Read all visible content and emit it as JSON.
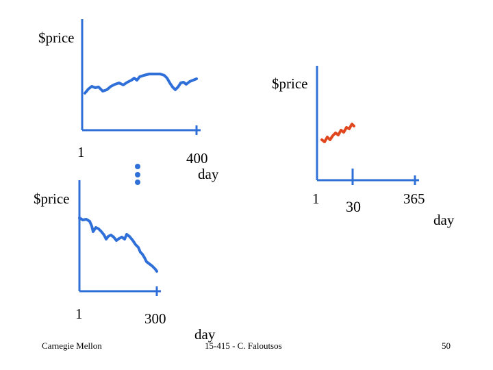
{
  "colors": {
    "axis": "#2f6fd8",
    "series_blue": "#2f6fd8",
    "series_red": "#e0471f",
    "ellipsis_dots": "#2f6fd8"
  },
  "chart_top_left": {
    "ylabel": "$price",
    "x_tick_start": "1",
    "x_tick_end": "400",
    "xlabel": "day"
  },
  "chart_bottom_left": {
    "ylabel": "$price",
    "x_tick_start": "1",
    "x_tick_end": "300",
    "xlabel": "day"
  },
  "chart_right": {
    "ylabel": "$price",
    "x_tick_start": "1",
    "x_tick_mid": "30",
    "x_tick_end": "365",
    "xlabel": "day"
  },
  "ellipsis_icon": "vertical-ellipsis",
  "footer": {
    "left": "Carnegie Mellon",
    "center": "15-415 - C. Faloutsos",
    "right": "50"
  }
}
